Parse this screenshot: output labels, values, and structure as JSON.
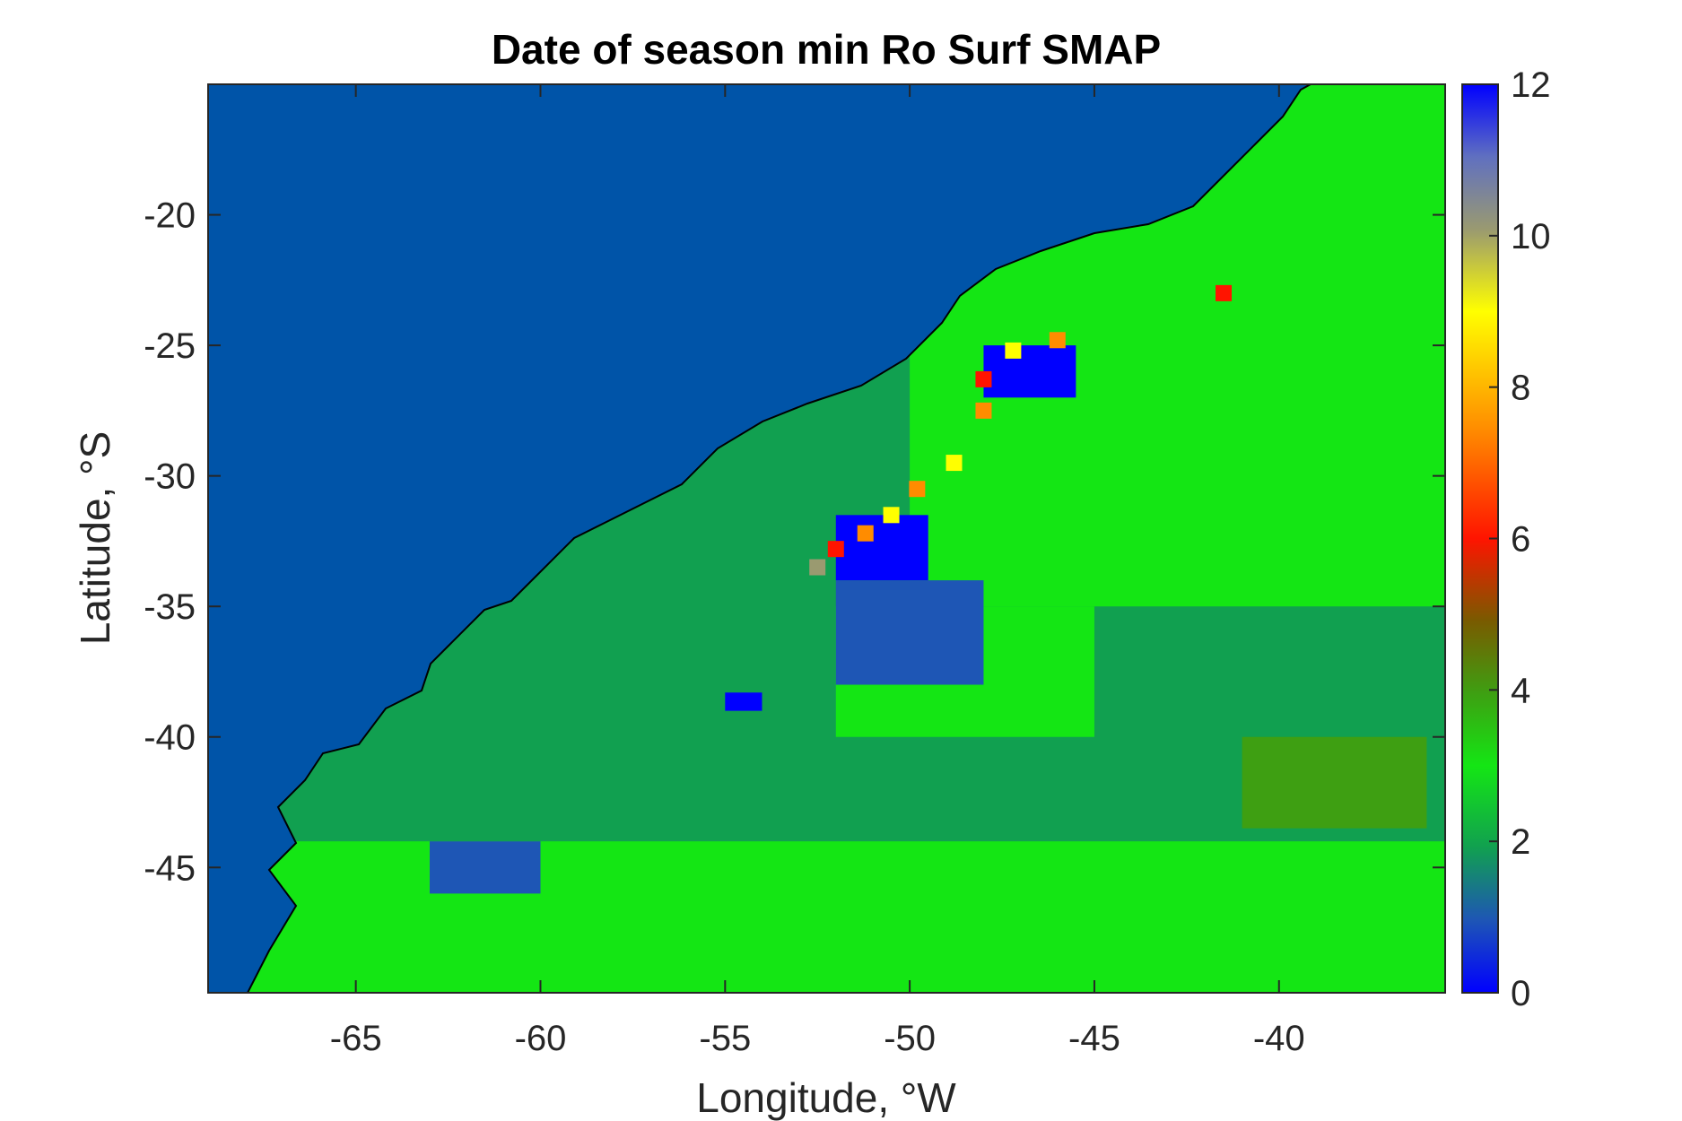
{
  "chart_data": {
    "type": "heatmap",
    "title": "Date of season min Ro Surf SMAP",
    "xlabel": "Longitude, °W",
    "ylabel": "Latitude, °S",
    "xlim": [
      -69,
      -35.5
    ],
    "ylim": [
      -49.8,
      -15
    ],
    "xticks": [
      -65,
      -60,
      -55,
      -50,
      -45,
      -40
    ],
    "yticks": [
      -20,
      -25,
      -30,
      -35,
      -40,
      -45
    ],
    "colorbar": {
      "range": [
        0,
        12
      ],
      "ticks": [
        0,
        2,
        4,
        6,
        8,
        10,
        12
      ]
    },
    "colors": {
      "ocean_background": "#0054A8",
      "value_0": "#0000FF",
      "value_1": "#1E56B5",
      "value_2": "#11A050",
      "value_3": "#14E614",
      "value_4": "#3E9F12",
      "value_5": "#7A5A00",
      "value_6": "#FF1400",
      "value_8": "#FF8C00",
      "value_9": "#FFFF00",
      "value_10": "#9A9A70",
      "value_11": "#6070C0"
    },
    "regions": [
      {
        "value": 2,
        "lon": [
          -69,
          -35.5
        ],
        "lat": [
          -49.8,
          -15
        ]
      },
      {
        "value": 3,
        "lon": [
          -50,
          -35.5
        ],
        "lat": [
          -35,
          -15
        ]
      },
      {
        "value": 3,
        "lon": [
          -69,
          -35.5
        ],
        "lat": [
          -49.8,
          -44
        ]
      },
      {
        "value": 3,
        "lon": [
          -52,
          -45
        ],
        "lat": [
          -40,
          -35
        ]
      },
      {
        "value": 4,
        "lon": [
          -41,
          -36
        ],
        "lat": [
          -43.5,
          -40
        ]
      },
      {
        "value": 0,
        "lon": [
          -52,
          -49.5
        ],
        "lat": [
          -34,
          -31.5
        ]
      },
      {
        "value": 0,
        "lon": [
          -48,
          -45.5
        ],
        "lat": [
          -27,
          -25
        ]
      },
      {
        "value": 0,
        "lon": [
          -55,
          -54
        ],
        "lat": [
          -39,
          -38.3
        ]
      },
      {
        "value": 1,
        "lon": [
          -52,
          -48
        ],
        "lat": [
          -38,
          -34
        ]
      },
      {
        "value": 1,
        "lon": [
          -63,
          -60
        ],
        "lat": [
          -46,
          -44
        ]
      }
    ],
    "coastal_values": [
      {
        "value": 10,
        "lon": -52.5,
        "lat": -33.5
      },
      {
        "value": 6,
        "lon": -52,
        "lat": -32.8
      },
      {
        "value": 8,
        "lon": -51.2,
        "lat": -32.2
      },
      {
        "value": 9,
        "lon": -50.5,
        "lat": -31.5
      },
      {
        "value": 8,
        "lon": -49.8,
        "lat": -30.5
      },
      {
        "value": 9,
        "lon": -48.8,
        "lat": -29.5
      },
      {
        "value": 8,
        "lon": -48,
        "lat": -27.5
      },
      {
        "value": 6,
        "lon": -48,
        "lat": -26.3
      },
      {
        "value": 9,
        "lon": -47.2,
        "lat": -25.2
      },
      {
        "value": 8,
        "lon": -46,
        "lat": -24.8
      },
      {
        "value": 6,
        "lon": -41.5,
        "lat": -23
      }
    ]
  }
}
